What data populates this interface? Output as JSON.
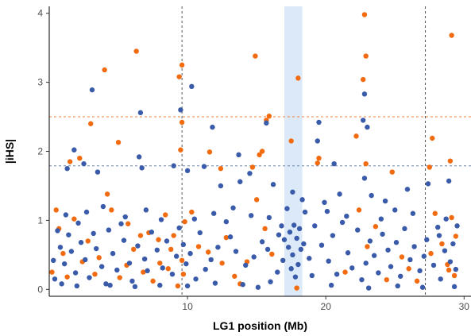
{
  "chart_data": {
    "type": "scatter",
    "xlabel": "LG1 position (Mb)",
    "ylabel": "|iHS|",
    "xlim": [
      0,
      30.5
    ],
    "ylim": [
      -0.1,
      4.1
    ],
    "xticks": [
      10,
      20,
      30
    ],
    "yticks": [
      0,
      1,
      2,
      3,
      4
    ],
    "grid": false,
    "legend": "none",
    "thresholds": [
      {
        "y": 2.5,
        "color": "#F07F3A"
      },
      {
        "y": 1.79,
        "color": "#6E86A8"
      }
    ],
    "vlines": [
      9.6,
      27.2
    ],
    "highlight_band": [
      17.0,
      18.3
    ],
    "colors": {
      "blue": "#3A5BA9",
      "orange": "#F26B11",
      "band": "#DCE9F8",
      "axis": "#000000"
    },
    "series": [
      {
        "color": "#F26B11",
        "points": [
          [
            4.0,
            3.18
          ],
          [
            6.3,
            3.45
          ],
          [
            9.6,
            3.25
          ],
          [
            9.4,
            3.08
          ],
          [
            14.9,
            3.38
          ],
          [
            18.0,
            3.06
          ],
          [
            22.8,
            3.98
          ],
          [
            22.9,
            3.38
          ],
          [
            22.7,
            3.04
          ],
          [
            29.1,
            3.68
          ],
          [
            3.0,
            2.4
          ],
          [
            5.0,
            2.13
          ],
          [
            9.6,
            2.42
          ],
          [
            9.5,
            2.02
          ],
          [
            11.6,
            1.99
          ],
          [
            12.4,
            1.75
          ],
          [
            14.7,
            1.77
          ],
          [
            15.7,
            2.45
          ],
          [
            15.9,
            2.51
          ],
          [
            15.2,
            1.95
          ],
          [
            15.4,
            2.0
          ],
          [
            17.5,
            2.15
          ],
          [
            19.4,
            1.83
          ],
          [
            19.5,
            1.9
          ],
          [
            22.2,
            2.22
          ],
          [
            22.9,
            1.82
          ],
          [
            24.8,
            1.7
          ],
          [
            27.5,
            1.77
          ],
          [
            27.7,
            2.19
          ],
          [
            29.0,
            1.86
          ],
          [
            1.5,
            1.85
          ],
          [
            2.2,
            1.9
          ],
          [
            4.2,
            1.38
          ],
          [
            4.5,
            1.15
          ],
          [
            5.7,
            0.95
          ],
          [
            6.6,
            0.78
          ],
          [
            7.2,
            0.82
          ],
          [
            7.9,
            0.72
          ],
          [
            8.4,
            1.08
          ],
          [
            8.8,
            0.58
          ],
          [
            9.7,
            0.22
          ],
          [
            9.6,
            0.42
          ],
          [
            10.3,
            1.12
          ],
          [
            10.8,
            0.62
          ],
          [
            11.5,
            0.54
          ],
          [
            12.5,
            0.38
          ],
          [
            12.8,
            0.75
          ],
          [
            13.4,
            0.19
          ],
          [
            13.8,
            0.08
          ],
          [
            14.3,
            0.4
          ],
          [
            15.0,
            1.3
          ],
          [
            15.6,
            0.88
          ],
          [
            16.1,
            0.51
          ],
          [
            17.9,
            0.02
          ],
          [
            21.4,
            0.25
          ],
          [
            22.4,
            1.15
          ],
          [
            23.0,
            0.62
          ],
          [
            23.6,
            0.91
          ],
          [
            24.4,
            0.14
          ],
          [
            25.5,
            0.47
          ],
          [
            26.0,
            0.3
          ],
          [
            26.6,
            0.12
          ],
          [
            27.6,
            0.52
          ],
          [
            27.9,
            1.1
          ],
          [
            28.4,
            0.66
          ],
          [
            28.8,
            0.36
          ],
          [
            29.3,
            0.2
          ],
          [
            29.4,
            0.77
          ],
          [
            29.1,
            1.04
          ],
          [
            28.9,
            0.28
          ],
          [
            0.2,
            0.25
          ],
          [
            0.5,
            1.15
          ],
          [
            0.7,
            0.88
          ],
          [
            1.0,
            0.52
          ],
          [
            1.3,
            0.18
          ],
          [
            1.8,
            1.02
          ],
          [
            2.4,
            0.4
          ],
          [
            2.8,
            0.7
          ],
          [
            3.3,
            0.22
          ],
          [
            3.6,
            0.46
          ],
          [
            5.1,
            0.17
          ],
          [
            5.6,
            0.35
          ],
          [
            6.1,
            0.58
          ],
          [
            6.8,
            0.25
          ],
          [
            7.5,
            0.12
          ],
          [
            8.0,
            0.38
          ],
          [
            8.6,
            0.3
          ],
          [
            9.0,
            0.78
          ],
          [
            9.3,
            0.05
          ],
          [
            9.8,
            0.98
          ]
        ]
      },
      {
        "color": "#3A5BA9",
        "points": [
          [
            3.1,
            2.89
          ],
          [
            6.6,
            2.56
          ],
          [
            9.5,
            2.6
          ],
          [
            10.3,
            2.94
          ],
          [
            11.8,
            2.35
          ],
          [
            22.8,
            2.83
          ],
          [
            22.7,
            2.45
          ],
          [
            19.5,
            2.42
          ],
          [
            19.4,
            2.15
          ],
          [
            23.0,
            2.35
          ],
          [
            15.7,
            2.41
          ],
          [
            13.7,
            1.95
          ],
          [
            6.5,
            1.92
          ],
          [
            1.3,
            1.75
          ],
          [
            1.8,
            2.02
          ],
          [
            2.5,
            1.82
          ],
          [
            3.5,
            1.7
          ],
          [
            6.7,
            1.76
          ],
          [
            9.0,
            1.79
          ],
          [
            10.0,
            1.72
          ],
          [
            11.2,
            1.78
          ],
          [
            12.4,
            1.5
          ],
          [
            13.8,
            1.56
          ],
          [
            14.5,
            1.68
          ],
          [
            16.2,
            1.52
          ],
          [
            17.6,
            1.41
          ],
          [
            18.3,
            1.3
          ],
          [
            20.6,
            1.82
          ],
          [
            22.8,
            1.61
          ],
          [
            25.9,
            1.45
          ],
          [
            27.4,
            1.53
          ],
          [
            28.9,
            1.57
          ],
          [
            21.0,
            1.38
          ],
          [
            23.3,
            1.36
          ],
          [
            24.3,
            1.28
          ],
          [
            19.9,
            1.26
          ],
          [
            18.5,
            1.12
          ],
          [
            17.2,
            1.17
          ],
          [
            16.8,
            0.92
          ],
          [
            17.0,
            0.72
          ],
          [
            17.3,
            0.61
          ],
          [
            17.4,
            0.83
          ],
          [
            17.6,
            0.5
          ],
          [
            17.7,
            0.93
          ],
          [
            17.9,
            0.74
          ],
          [
            18.0,
            0.36
          ],
          [
            18.1,
            0.88
          ],
          [
            18.2,
            0.58
          ],
          [
            17.5,
            0.3
          ],
          [
            16.9,
            0.42
          ],
          [
            17.8,
            0.18
          ],
          [
            18.4,
            0.66
          ],
          [
            16.5,
            0.25
          ],
          [
            16.6,
            0.79
          ],
          [
            15.8,
            0.58
          ],
          [
            15.4,
            0.69
          ],
          [
            14.8,
            0.47
          ],
          [
            14.2,
            0.35
          ],
          [
            13.5,
            0.55
          ],
          [
            13.1,
            0.76
          ],
          [
            12.8,
            0.98
          ],
          [
            12.2,
            0.61
          ],
          [
            11.7,
            0.43
          ],
          [
            11.3,
            0.29
          ],
          [
            10.9,
            0.82
          ],
          [
            10.6,
            0.15
          ],
          [
            10.2,
            0.52
          ],
          [
            9.9,
            0.37
          ],
          [
            9.7,
            0.65
          ],
          [
            9.4,
            0.89
          ],
          [
            9.2,
            0.48
          ],
          [
            8.9,
            0.22
          ],
          [
            8.5,
            0.7
          ],
          [
            8.2,
            0.31
          ],
          [
            7.8,
            0.57
          ],
          [
            7.4,
            0.83
          ],
          [
            7.1,
            0.27
          ],
          [
            6.9,
            0.44
          ],
          [
            6.4,
            0.63
          ],
          [
            6.0,
            0.12
          ],
          [
            5.8,
            0.38
          ],
          [
            5.4,
            0.71
          ],
          [
            5.2,
            0.95
          ],
          [
            4.9,
            0.28
          ],
          [
            4.6,
            0.52
          ],
          [
            4.3,
            0.86
          ],
          [
            4.1,
            0.08
          ],
          [
            3.8,
            0.33
          ],
          [
            3.4,
            0.59
          ],
          [
            3.2,
            0.81
          ],
          [
            2.9,
            0.17
          ],
          [
            2.6,
            0.43
          ],
          [
            2.3,
            0.68
          ],
          [
            2.1,
            0.96
          ],
          [
            1.9,
            0.24
          ],
          [
            1.6,
            0.55
          ],
          [
            1.4,
            0.79
          ],
          [
            1.1,
            0.37
          ],
          [
            0.8,
            0.61
          ],
          [
            0.6,
            0.85
          ],
          [
            0.3,
            0.42
          ],
          [
            0.4,
            0.15
          ],
          [
            1.2,
            1.08
          ],
          [
            2.7,
            1.12
          ],
          [
            3.9,
            1.2
          ],
          [
            5.5,
            1.05
          ],
          [
            7.0,
            1.15
          ],
          [
            8.1,
            1.01
          ],
          [
            10.5,
            1.02
          ],
          [
            11.9,
            1.1
          ],
          [
            13.3,
            1.18
          ],
          [
            14.6,
            1.07
          ],
          [
            15.9,
            1.04
          ],
          [
            19.2,
            0.92
          ],
          [
            19.7,
            0.64
          ],
          [
            20.2,
            0.41
          ],
          [
            20.5,
            0.78
          ],
          [
            20.8,
            0.22
          ],
          [
            21.2,
            0.97
          ],
          [
            21.6,
            0.53
          ],
          [
            21.9,
            0.31
          ],
          [
            22.3,
            0.86
          ],
          [
            22.6,
            0.14
          ],
          [
            22.9,
            0.38
          ],
          [
            23.2,
            0.7
          ],
          [
            23.5,
            0.49
          ],
          [
            23.8,
            0.24
          ],
          [
            24.1,
            0.8
          ],
          [
            24.5,
            0.57
          ],
          [
            24.7,
            0.33
          ],
          [
            25.1,
            0.68
          ],
          [
            25.4,
            0.19
          ],
          [
            25.7,
            0.88
          ],
          [
            26.1,
            0.43
          ],
          [
            26.4,
            0.62
          ],
          [
            26.8,
            0.27
          ],
          [
            27.1,
            0.48
          ],
          [
            27.3,
            0.72
          ],
          [
            27.8,
            0.35
          ],
          [
            28.1,
            0.9
          ],
          [
            28.3,
            0.15
          ],
          [
            28.6,
            0.56
          ],
          [
            29.0,
            0.4
          ],
          [
            29.2,
            0.66
          ],
          [
            29.4,
            0.29
          ],
          [
            29.5,
            0.92
          ],
          [
            28.7,
            1.02
          ],
          [
            28.2,
            0.78
          ],
          [
            26.3,
            1.1
          ],
          [
            25.0,
            1.15
          ],
          [
            24.0,
            1.02
          ],
          [
            21.5,
            1.06
          ],
          [
            20.1,
            1.13
          ],
          [
            19.0,
            0.2
          ],
          [
            18.8,
            0.45
          ],
          [
            16.0,
            0.11
          ],
          [
            14.0,
            0.07
          ],
          [
            12.0,
            0.09
          ],
          [
            10.0,
            0.05
          ],
          [
            8.0,
            0.06
          ],
          [
            6.2,
            0.04
          ],
          [
            4.4,
            0.06
          ],
          [
            2.0,
            0.05
          ],
          [
            0.9,
            0.08
          ],
          [
            23.1,
            0.02
          ],
          [
            25.2,
            0.05
          ],
          [
            27.0,
            0.03
          ],
          [
            29.3,
            0.04
          ],
          [
            20.4,
            0.06
          ],
          [
            15.1,
            0.03
          ]
        ]
      }
    ]
  }
}
